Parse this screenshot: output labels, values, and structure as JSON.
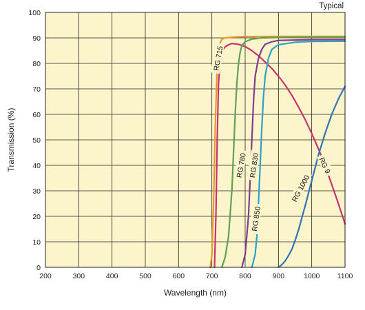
{
  "chart_data": {
    "type": "line",
    "title": "",
    "annotation": "Typical",
    "xlabel": "Wavelength (nm)",
    "ylabel": "Transmission (%)",
    "xlim": [
      200,
      1100
    ],
    "ylim": [
      0,
      100
    ],
    "x_ticks": [
      200,
      300,
      400,
      500,
      600,
      700,
      800,
      900,
      1000,
      1100
    ],
    "y_ticks": [
      0,
      10,
      20,
      30,
      40,
      50,
      60,
      70,
      80,
      90,
      100
    ],
    "grid": true,
    "colors": {
      "plot_background": "#fcf5cc",
      "grid": "#222222"
    },
    "series": [
      {
        "name": "RG 715",
        "color": "#e8962e",
        "x": [
          695,
          700,
          705,
          710,
          715,
          720,
          725,
          730,
          740,
          760,
          800,
          900,
          1000,
          1100
        ],
        "y": [
          0,
          5,
          25,
          55,
          75,
          85,
          88,
          89.5,
          90,
          90.3,
          90.5,
          90.6,
          90.6,
          90.6
        ]
      },
      {
        "name": "RG 9",
        "color": "#c8326e",
        "x": [
          708,
          712,
          716,
          720,
          725,
          730,
          740,
          750,
          760,
          780,
          800,
          820,
          840,
          860,
          880,
          900,
          920,
          940,
          960,
          980,
          1000,
          1020,
          1040,
          1060,
          1080,
          1100
        ],
        "y": [
          0,
          20,
          50,
          72,
          82,
          85,
          86.5,
          87.3,
          87.8,
          87.5,
          86.6,
          85,
          83,
          80.5,
          78,
          75,
          71.5,
          67.5,
          63,
          58,
          52.5,
          46.5,
          40,
          32.5,
          25,
          17
        ]
      },
      {
        "name": "RG 780",
        "color": "#5fa055",
        "x": [
          730,
          740,
          750,
          760,
          765,
          770,
          775,
          780,
          785,
          790,
          800,
          820,
          850,
          900,
          1000,
          1100
        ],
        "y": [
          0,
          4,
          12,
          30,
          45,
          60,
          72,
          80,
          84.5,
          87,
          88.5,
          89.5,
          90,
          90.2,
          90.3,
          90.3
        ]
      },
      {
        "name": "RG 830",
        "color": "#823c8c",
        "x": [
          790,
          800,
          810,
          815,
          820,
          825,
          830,
          840,
          850,
          860,
          880,
          900,
          1000,
          1100
        ],
        "y": [
          0,
          5,
          20,
          35,
          50,
          65,
          75,
          82,
          85.5,
          87.5,
          88.5,
          89,
          89.3,
          89.3
        ]
      },
      {
        "name": "RG 850",
        "color": "#2ea0c8",
        "x": [
          820,
          830,
          835,
          840,
          845,
          850,
          855,
          860,
          870,
          880,
          900,
          950,
          1000,
          1100
        ],
        "y": [
          0,
          5,
          12,
          25,
          40,
          55,
          67,
          75,
          82,
          85.5,
          87.3,
          88.3,
          88.6,
          88.7
        ]
      },
      {
        "name": "RG 1000",
        "color": "#3272b4",
        "x": [
          900,
          910,
          920,
          930,
          940,
          950,
          960,
          980,
          1000,
          1020,
          1040,
          1060,
          1080,
          1100
        ],
        "y": [
          0,
          1,
          2.5,
          4.5,
          7,
          10.5,
          14.5,
          24,
          34,
          44,
          52.5,
          60,
          66,
          71
        ]
      }
    ],
    "series_label_anchors": [
      {
        "name": "RG 715",
        "x": 718,
        "y": 82,
        "angle": -80
      },
      {
        "name": "RG 9",
        "x": 1040,
        "y": 40,
        "angle": 65
      },
      {
        "name": "RG 780",
        "x": 787,
        "y": 40,
        "angle": -80
      },
      {
        "name": "RG 830",
        "x": 826,
        "y": 40,
        "angle": -82
      },
      {
        "name": "RG 850",
        "x": 832,
        "y": 19,
        "angle": -82
      },
      {
        "name": "RG 1000",
        "x": 966,
        "y": 31,
        "angle": -62
      }
    ]
  }
}
